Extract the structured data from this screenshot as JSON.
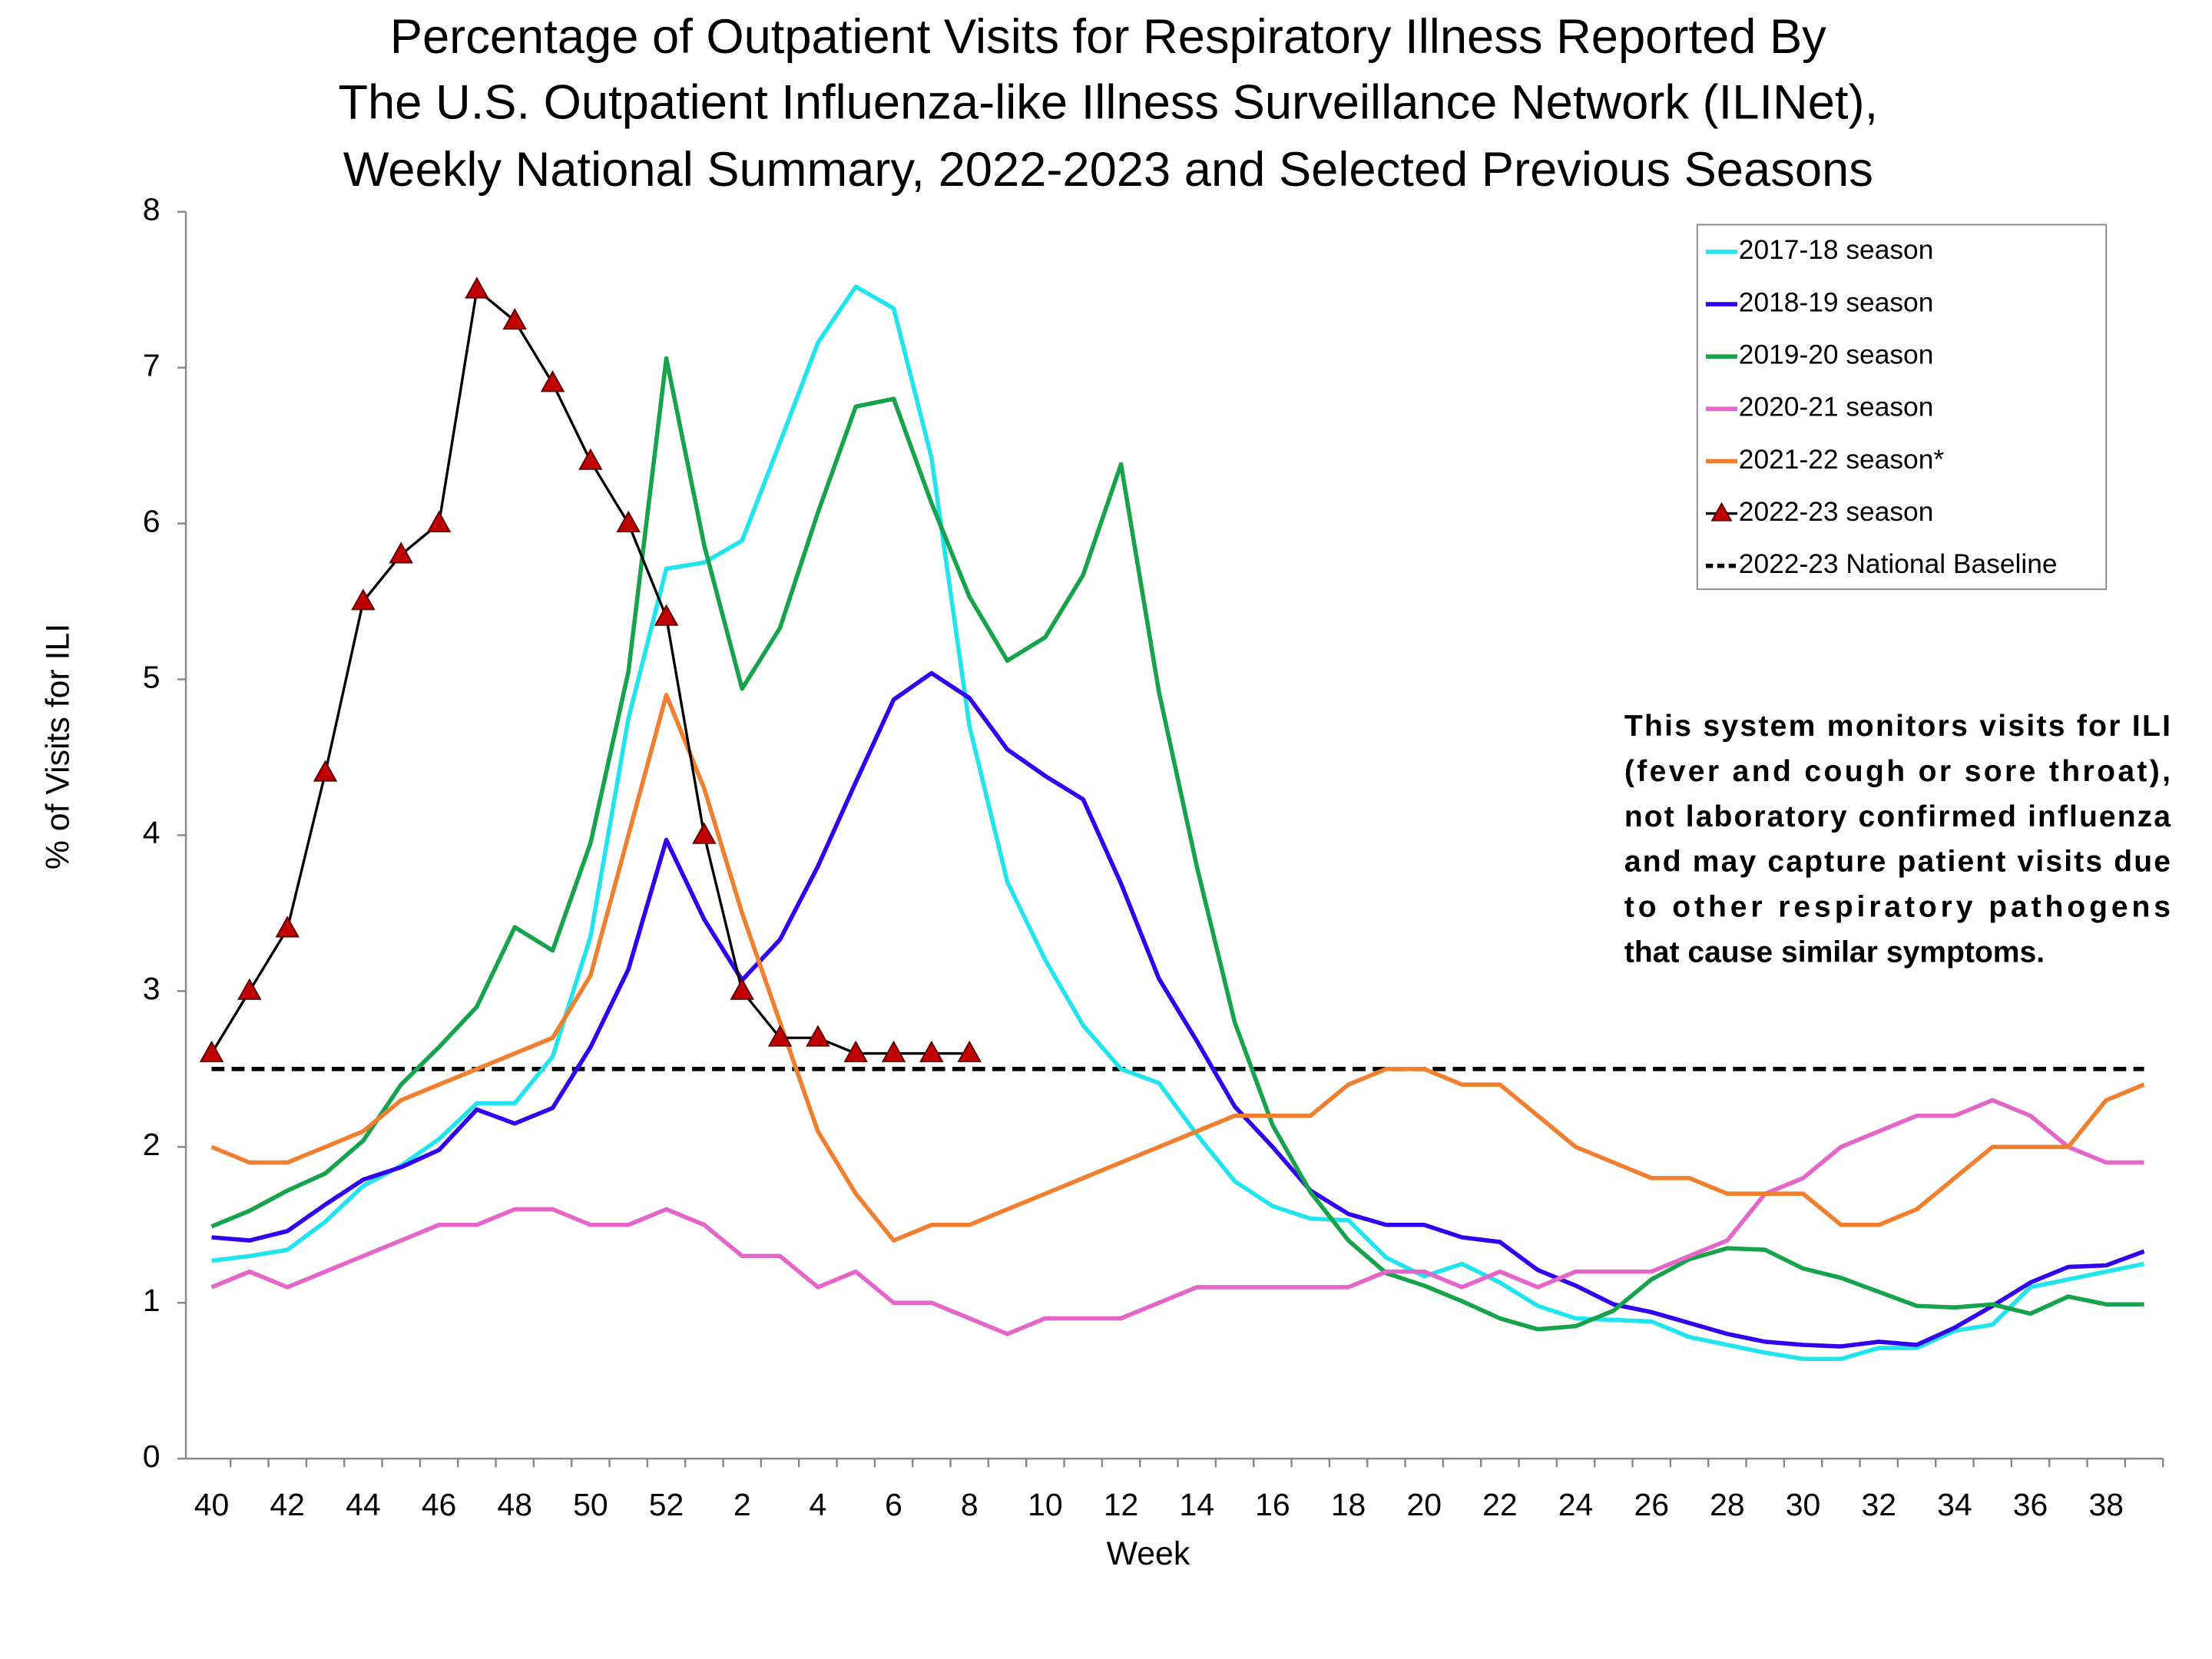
{
  "chart_data": {
    "type": "line",
    "title": [
      "Percentage of Outpatient Visits for Respiratory Illness Reported By",
      "The U.S. Outpatient Influenza-like Illness Surveillance Network (ILINet),",
      "Weekly National Summary, 2022-2023 and Selected Previous Seasons"
    ],
    "x_label": "Week",
    "y_label": "% of Visits for ILI",
    "categories": [
      "40",
      null,
      "42",
      null,
      "44",
      null,
      "46",
      null,
      "48",
      null,
      "50",
      null,
      "52",
      null,
      "2",
      null,
      "4",
      null,
      "6",
      null,
      "8",
      null,
      "10",
      null,
      "12",
      null,
      "14",
      null,
      "16",
      null,
      "18",
      null,
      "20",
      null,
      "22",
      null,
      "24",
      null,
      "26",
      null,
      "28",
      null,
      "30",
      null,
      "32",
      null,
      "34",
      null,
      "36",
      null,
      "38",
      null
    ],
    "ylim": [
      0,
      8
    ],
    "yticks": [
      0,
      1,
      2,
      3,
      4,
      5,
      6,
      7,
      8
    ],
    "legend": "top-right",
    "series": [
      {
        "name": "2017-18 season",
        "color": "#22e4ee",
        "values": [
          1.27,
          1.3,
          1.34,
          1.52,
          1.75,
          1.88,
          2.05,
          2.28,
          2.28,
          2.58,
          3.35,
          4.75,
          5.71,
          5.75,
          5.89,
          6.52,
          7.16,
          7.52,
          7.38,
          6.42,
          4.7,
          3.7,
          3.2,
          2.78,
          2.5,
          2.41,
          2.08,
          1.78,
          1.62,
          1.54,
          1.53,
          1.29,
          1.17,
          1.25,
          1.13,
          0.98,
          0.9,
          0.89,
          0.88,
          0.78,
          0.73,
          0.68,
          0.64,
          0.64,
          0.71,
          0.71,
          0.82,
          0.86,
          1.1,
          1.15,
          1.2,
          1.25
        ]
      },
      {
        "name": "2018-19 season",
        "color": "#3300ee",
        "values": [
          1.42,
          1.4,
          1.46,
          1.63,
          1.79,
          1.87,
          1.98,
          2.24,
          2.15,
          2.25,
          2.64,
          3.14,
          3.97,
          3.46,
          3.07,
          3.33,
          3.8,
          4.34,
          4.87,
          5.04,
          4.88,
          4.55,
          4.38,
          4.23,
          3.69,
          3.08,
          2.68,
          2.26,
          2.0,
          1.72,
          1.57,
          1.5,
          1.5,
          1.42,
          1.39,
          1.21,
          1.11,
          0.99,
          0.94,
          0.87,
          0.8,
          0.75,
          0.73,
          0.72,
          0.75,
          0.73,
          0.84,
          0.98,
          1.13,
          1.23,
          1.24,
          1.33
        ]
      },
      {
        "name": "2019-20 season",
        "color": "#16a34c",
        "values": [
          1.49,
          1.59,
          1.72,
          1.83,
          2.04,
          2.4,
          2.64,
          2.9,
          3.41,
          3.26,
          3.95,
          5.05,
          7.06,
          5.86,
          4.94,
          5.33,
          6.07,
          6.75,
          6.8,
          6.13,
          5.53,
          5.12,
          5.27,
          5.67,
          6.38,
          4.92,
          3.8,
          2.8,
          2.14,
          1.71,
          1.4,
          1.19,
          1.11,
          1.01,
          0.9,
          0.83,
          0.85,
          0.95,
          1.15,
          1.28,
          1.35,
          1.34,
          1.22,
          1.16,
          1.07,
          0.98,
          0.97,
          0.99,
          0.93,
          1.04,
          0.99,
          0.99
        ]
      },
      {
        "name": "2020-21 season",
        "color": "#e366c8",
        "values": [
          1.1,
          1.2,
          1.1,
          1.2,
          1.3,
          1.4,
          1.5,
          1.5,
          1.6,
          1.6,
          1.5,
          1.5,
          1.6,
          1.5,
          1.3,
          1.3,
          1.1,
          1.2,
          1.0,
          1.0,
          0.9,
          0.8,
          0.9,
          0.9,
          0.9,
          1.0,
          1.1,
          1.1,
          1.1,
          1.1,
          1.1,
          1.2,
          1.2,
          1.1,
          1.2,
          1.1,
          1.2,
          1.2,
          1.2,
          1.3,
          1.4,
          1.7,
          1.8,
          2.0,
          2.1,
          2.2,
          2.2,
          2.3,
          2.2,
          2.0,
          1.9,
          1.9
        ]
      },
      {
        "name": "2021-22 season*",
        "color": "#f07f30",
        "values": [
          2.0,
          1.9,
          1.9,
          2.0,
          2.1,
          2.3,
          2.4,
          2.5,
          2.6,
          2.7,
          3.1,
          4.0,
          4.9,
          4.3,
          3.5,
          2.8,
          2.1,
          1.7,
          1.4,
          1.5,
          1.5,
          1.6,
          1.7,
          1.8,
          1.9,
          2.0,
          2.1,
          2.2,
          2.2,
          2.2,
          2.4,
          2.5,
          2.5,
          2.4,
          2.4,
          2.2,
          2.0,
          1.9,
          1.8,
          1.8,
          1.7,
          1.7,
          1.7,
          1.5,
          1.5,
          1.6,
          1.8,
          2.0,
          2.0,
          2.0,
          2.3,
          2.4
        ]
      },
      {
        "name": "2022-23 season",
        "color": "#000000",
        "marker": "triangle",
        "marker_color": "#c00000",
        "values": [
          2.6,
          3.0,
          3.4,
          4.4,
          5.5,
          5.8,
          6.0,
          7.5,
          7.3,
          6.9,
          6.4,
          6.0,
          5.4,
          4.0,
          3.0,
          2.7,
          2.7,
          2.6,
          2.6,
          2.6,
          2.6,
          null,
          null,
          null,
          null,
          null,
          null,
          null,
          null,
          null,
          null,
          null,
          null,
          null,
          null,
          null,
          null,
          null,
          null,
          null,
          null,
          null,
          null,
          null,
          null,
          null,
          null,
          null,
          null,
          null,
          null,
          null
        ]
      }
    ],
    "baseline": {
      "name": "2022-23 National Baseline",
      "value": 2.5,
      "color": "#000000"
    },
    "annotation": [
      "This system monitors visits for ILI",
      "(fever and cough or sore throat),",
      "not laboratory confirmed influenza",
      "and may capture patient visits due",
      "to other respiratory pathogens",
      "that cause similar symptoms."
    ]
  }
}
